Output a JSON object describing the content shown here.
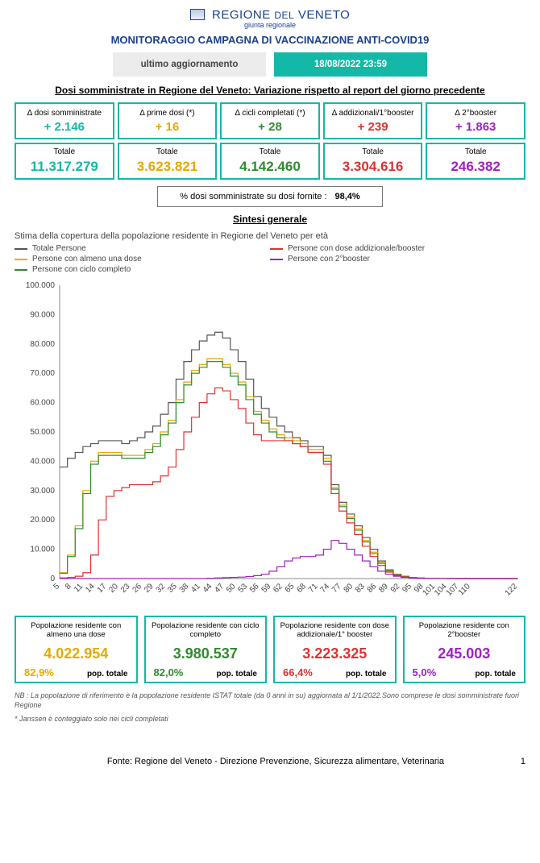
{
  "header": {
    "logo_text": "REGIONE DEL VENETO",
    "logo_small_prefix": "REGIONE ",
    "logo_small_mid": "DEL",
    "logo_small_suffix": " VENETO",
    "logo_sub": "giunta regionale",
    "title": "MONITORAGGIO CAMPAGNA DI VACCINAZIONE ANTI-COVID19",
    "update_label": "ultimo aggiornamento",
    "update_date": "18/08/2022 23:59"
  },
  "section1_title": "Dosi somministrate in Regione del Veneto: Variazione rispetto al report del giorno precedente",
  "colors": {
    "teal": "#14b8a6",
    "gold": "#e6a800",
    "green": "#2e8b2e",
    "red": "#e03131",
    "purple": "#a020c0",
    "grey": "#555555"
  },
  "top_cards": [
    {
      "delta_label": "Δ dosi somministrate",
      "delta_value": "+ 2.146",
      "total_label": "Totale",
      "total_value": "11.317.279",
      "color": "#14b8a6"
    },
    {
      "delta_label": "Δ prime dosi (*)",
      "delta_value": "+ 16",
      "total_label": "Totale",
      "total_value": "3.623.821",
      "color": "#e6a800"
    },
    {
      "delta_label": "Δ cicli completati (*)",
      "delta_value": "+ 28",
      "total_label": "Totale",
      "total_value": "4.142.460",
      "color": "#2e8b2e"
    },
    {
      "delta_label": "Δ addizionali/1°booster",
      "delta_value": "+ 239",
      "total_label": "Totale",
      "total_value": "3.304.616",
      "color": "#e03131"
    },
    {
      "delta_label": "Δ 2°booster",
      "delta_value": "+ 1.863",
      "total_label": "Totale",
      "total_value": "246.382",
      "color": "#a020c0"
    }
  ],
  "percent": {
    "label": "% dosi somministrate su dosi fornite :",
    "value": "98,4%"
  },
  "section2_title": "Sintesi generale",
  "chart": {
    "subtitle": "Stima della copertura della popolazione residente in Regione del Veneto per età",
    "type": "line",
    "x_start": 5,
    "x_end": 122,
    "x_step": 3,
    "ylim": [
      0,
      100000
    ],
    "ytick_step": 10000,
    "background_color": "#ffffff",
    "grid_color": "#e0e0e0",
    "axis_label_fontsize": 10,
    "line_width": 1.2,
    "legend": [
      {
        "label": "Totale Persone",
        "color": "#555555"
      },
      {
        "label": "Persone con almeno una dose",
        "color": "#e6a800"
      },
      {
        "label": "Persone con ciclo completo",
        "color": "#2e8b2e"
      },
      {
        "label": "Persone con dose addizionale/booster",
        "color": "#e03131"
      },
      {
        "label": "Persone con 2°booster",
        "color": "#a020c0"
      }
    ],
    "x_ticks": [
      5,
      8,
      11,
      14,
      17,
      20,
      23,
      26,
      29,
      32,
      35,
      38,
      41,
      44,
      47,
      50,
      53,
      56,
      59,
      62,
      65,
      68,
      71,
      74,
      77,
      80,
      83,
      86,
      89,
      92,
      95,
      98,
      101,
      104,
      107,
      110,
      122
    ],
    "y_ticks": [
      0,
      10000,
      20000,
      30000,
      40000,
      50000,
      60000,
      70000,
      80000,
      90000,
      100000
    ],
    "y_tick_labels": [
      "0",
      "10.000",
      "20.000",
      "30.000",
      "40.000",
      "50.000",
      "60.000",
      "70.000",
      "80.000",
      "90.000",
      "100.000"
    ],
    "series": {
      "totale": [
        38000,
        41000,
        43000,
        45000,
        46000,
        47000,
        47000,
        47000,
        46000,
        47000,
        48000,
        50000,
        52000,
        56000,
        60000,
        68000,
        74000,
        78000,
        81000,
        83000,
        84000,
        82000,
        78000,
        74000,
        68000,
        62000,
        58000,
        55000,
        52000,
        50000,
        48000,
        47000,
        45000,
        45000,
        42000,
        32000,
        26000,
        22000,
        18000,
        14000,
        10000,
        6000,
        3000,
        1500,
        800,
        400,
        200,
        100,
        50,
        30,
        20,
        10,
        10,
        10,
        10,
        10,
        10,
        10,
        10,
        30
      ],
      "dose1": [
        2000,
        8000,
        18000,
        30000,
        40000,
        43000,
        43000,
        43000,
        42000,
        42000,
        42000,
        44000,
        46000,
        50000,
        54000,
        61000,
        67000,
        71000,
        73000,
        75000,
        75000,
        73000,
        70000,
        67000,
        62000,
        57000,
        54000,
        51000,
        49000,
        48000,
        47000,
        46000,
        44000,
        44000,
        41000,
        31000,
        25000,
        21000,
        17000,
        13000,
        9000,
        5500,
        2800,
        1400,
        700,
        350,
        180,
        90,
        40,
        25,
        15,
        10,
        10,
        10,
        10,
        10,
        10,
        10,
        10,
        30
      ],
      "ciclo": [
        1800,
        7500,
        17000,
        29000,
        39000,
        42000,
        42000,
        42000,
        41000,
        41000,
        41000,
        43000,
        45000,
        49000,
        53000,
        60000,
        66000,
        70000,
        72000,
        74000,
        74000,
        72000,
        69000,
        66000,
        61000,
        56000,
        53000,
        50000,
        48000,
        47000,
        46000,
        45000,
        43000,
        43000,
        40000,
        30500,
        24500,
        20500,
        16500,
        12500,
        8500,
        5200,
        2600,
        1300,
        650,
        320,
        160,
        80,
        35,
        20,
        12,
        8,
        8,
        8,
        8,
        8,
        8,
        8,
        8,
        25
      ],
      "booster1": [
        200,
        400,
        800,
        2000,
        8000,
        20000,
        28000,
        30000,
        31000,
        32000,
        32000,
        32000,
        33000,
        35000,
        38000,
        44000,
        50000,
        55000,
        60000,
        63000,
        65000,
        64000,
        61000,
        58000,
        53000,
        49000,
        47000,
        47000,
        47000,
        47000,
        46000,
        45000,
        43000,
        43000,
        39000,
        29000,
        23000,
        19000,
        15000,
        11000,
        7500,
        4500,
        2200,
        1100,
        550,
        280,
        140,
        70,
        30,
        18,
        10,
        8,
        8,
        8,
        8,
        8,
        8,
        8,
        8,
        20
      ],
      "booster2": [
        0,
        0,
        0,
        0,
        0,
        0,
        0,
        0,
        0,
        0,
        0,
        0,
        0,
        0,
        0,
        0,
        0,
        0,
        0,
        100,
        200,
        300,
        400,
        500,
        700,
        1000,
        1500,
        2500,
        4000,
        6000,
        7000,
        7500,
        7500,
        8000,
        10000,
        13000,
        12000,
        10000,
        8000,
        6000,
        4000,
        2500,
        1500,
        800,
        400,
        200,
        100,
        50,
        25,
        15,
        10,
        8,
        8,
        8,
        8,
        8,
        8,
        8,
        8,
        15
      ]
    }
  },
  "bottom_cards": [
    {
      "label": "Popolazione residente con almeno una dose",
      "value": "4.022.954",
      "pct": "82,9%",
      "pct_label": "pop. totale",
      "color": "#e6a800"
    },
    {
      "label": "Popolazione residente con ciclo completo",
      "value": "3.980.537",
      "pct": "82,0%",
      "pct_label": "pop. totale",
      "color": "#2e8b2e"
    },
    {
      "label": "Popolazione residente con dose addizionale/1° booster",
      "value": "3.223.325",
      "pct": "66,4%",
      "pct_label": "pop. totale",
      "color": "#e03131"
    },
    {
      "label": "Popolazione residente con 2°booster",
      "value": "245.003",
      "pct": "5,0%",
      "pct_label": "pop. totale",
      "color": "#a020c0"
    }
  ],
  "notes": [
    "NB : La popolazione di riferimento è la popolazione residente ISTAT totale (da 0 anni in su) aggiornata al 1/1/2022.Sono comprese le dosi somministrate fuori Regione",
    "* Janssen è conteggiato solo nei cicli completati"
  ],
  "footer": {
    "source": "Fonte: Regione del Veneto - Direzione Prevenzione, Sicurezza alimentare, Veterinaria",
    "page": "1"
  }
}
